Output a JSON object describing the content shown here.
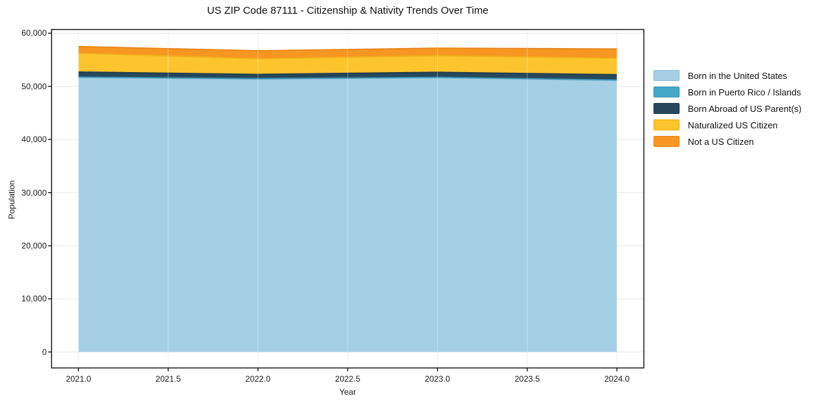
{
  "accent_colors": {
    "background": "#ffffff",
    "grid": "#e9e9e9",
    "spine": "#000000"
  },
  "chart_data": {
    "type": "area",
    "stacked": true,
    "title": "US ZIP Code 87111 - Citizenship & Nativity Trends Over Time",
    "xlabel": "Year",
    "ylabel": "Population",
    "x": [
      2021,
      2022,
      2023,
      2024
    ],
    "series": [
      {
        "name": "Born in the United States",
        "fill": "#a5cfe5",
        "edge": "#8cc0da",
        "values": [
          51650,
          51350,
          51600,
          51100
        ]
      },
      {
        "name": "Born in Puerto Rico / Islands",
        "fill": "#46a8c8",
        "edge": "#3a96b5",
        "values": [
          100,
          100,
          100,
          100
        ]
      },
      {
        "name": "Born Abroad of US Parent(s)",
        "fill": "#27485c",
        "edge": "#203d4e",
        "values": [
          950,
          800,
          950,
          1000
        ]
      },
      {
        "name": "Naturalized US Citizen",
        "fill": "#fcc42d",
        "edge": "#f0b019",
        "values": [
          3550,
          2950,
          3150,
          3100
        ]
      },
      {
        "name": "Not a US Citizen",
        "fill": "#f79620",
        "edge": "#e8851c",
        "values": [
          1250,
          1500,
          1400,
          1750
        ]
      }
    ],
    "xlim": [
      2020.85,
      2024.15
    ],
    "ylim": [
      -3000,
      60700
    ],
    "xticks": [
      2021.0,
      2021.5,
      2022.0,
      2022.5,
      2023.0,
      2023.5,
      2024.0
    ],
    "xtick_labels": [
      "2021.0",
      "2021.5",
      "2022.0",
      "2022.5",
      "2023.0",
      "2023.5",
      "2024.0"
    ],
    "yticks": [
      0,
      10000,
      20000,
      30000,
      40000,
      50000,
      60000
    ],
    "ytick_labels": [
      "0",
      "10,000",
      "20,000",
      "30,000",
      "40,000",
      "50,000",
      "60,000"
    ],
    "grid": true,
    "legend_position": "right-outside"
  }
}
